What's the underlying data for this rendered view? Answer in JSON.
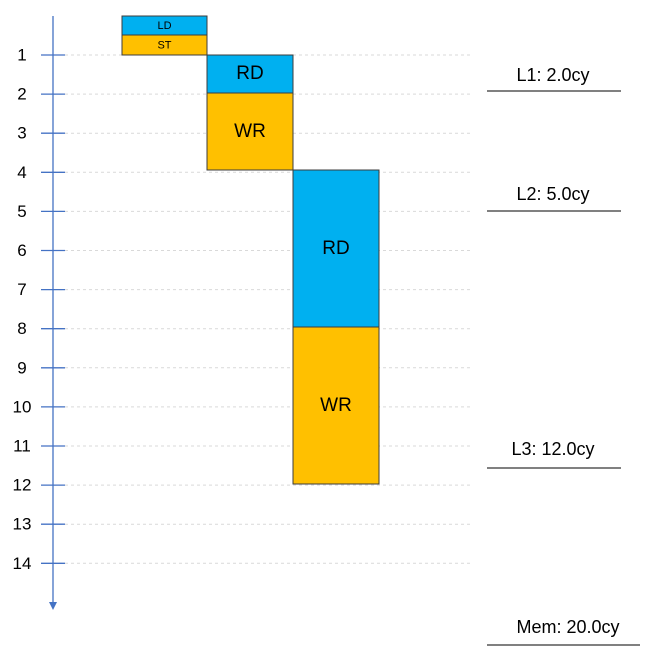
{
  "colors": {
    "read": "#00B0F0",
    "write": "#FFC000",
    "axis": "#4472C4",
    "gridline": "#D9D9D9",
    "box_border": "#3C3C3C",
    "label_underline": "#000000"
  },
  "timeline": {
    "ticks": [
      "1",
      "2",
      "3",
      "4",
      "5",
      "6",
      "7",
      "8",
      "9",
      "10",
      "11",
      "12",
      "13",
      "14"
    ]
  },
  "ops": {
    "ld": "LD",
    "st": "ST",
    "l1_rd": "RD",
    "l1_wr": "WR",
    "l2_rd": "RD",
    "l2_wr": "WR"
  },
  "latencies": {
    "l1": "L1: 2.0cy",
    "l2": "L2: 5.0cy",
    "l3": "L3: 12.0cy",
    "mem": "Mem: 20.0cy"
  }
}
